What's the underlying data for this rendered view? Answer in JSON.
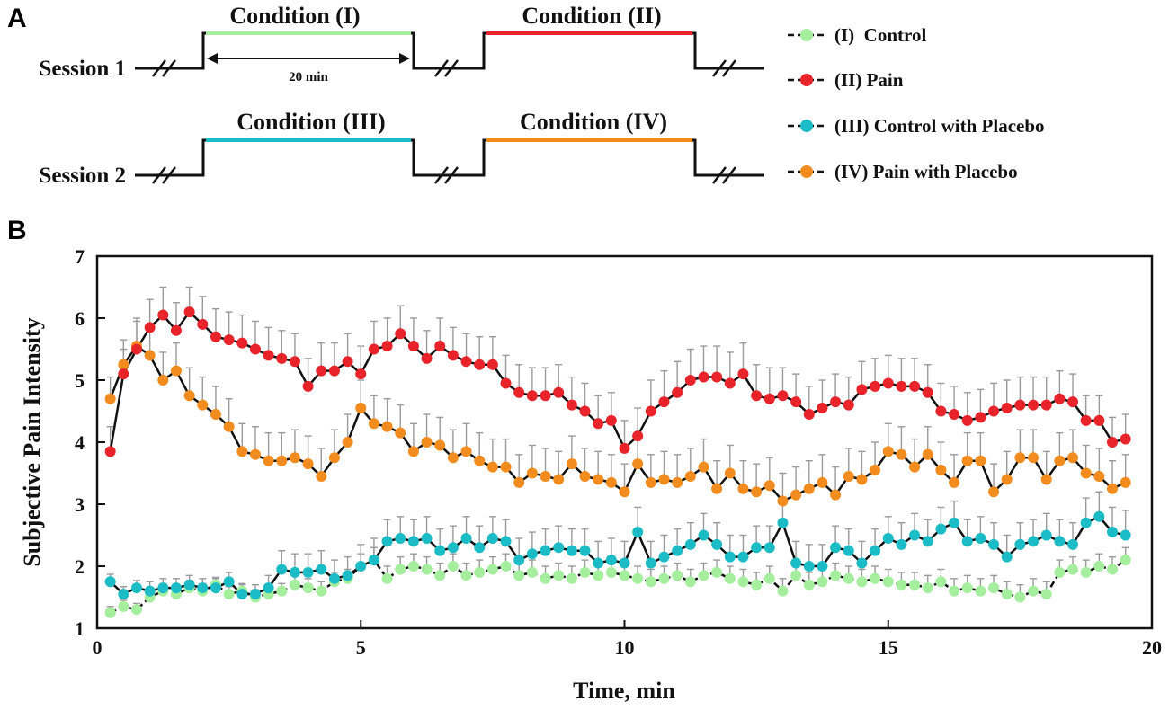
{
  "panels": {
    "a": "A",
    "b": "B"
  },
  "timeline": {
    "duration_label": "20 min",
    "sessions": [
      {
        "label": "Session 1",
        "conditions": [
          {
            "label": "Condition (I)",
            "color": "#a4ee9e"
          },
          {
            "label": "Condition (II)",
            "color": "#e8232a"
          }
        ]
      },
      {
        "label": "Session 2",
        "conditions": [
          {
            "label": "Condition (III)",
            "color": "#1bbcc5"
          },
          {
            "label": "Condition (IV)",
            "color": "#f28c1e"
          }
        ]
      }
    ]
  },
  "legend": [
    {
      "label": "(I)  Control",
      "color": "#a4ee9e"
    },
    {
      "label": "(II) Pain",
      "color": "#e8232a"
    },
    {
      "label": "(III) Control with Placebo",
      "color": "#1bbcc5"
    },
    {
      "label": "(IV) Pain with Placebo",
      "color": "#f28c1e"
    }
  ],
  "chart_data": {
    "type": "line",
    "title": "",
    "xlabel": "Time, min",
    "ylabel": "Subjective Pain Intensity",
    "xlim": [
      0,
      20
    ],
    "ylim": [
      1,
      7
    ],
    "xticks": [
      0,
      5,
      10,
      15,
      20
    ],
    "yticks": [
      1,
      2,
      3,
      4,
      5,
      6,
      7
    ],
    "x": [
      0.25,
      0.5,
      0.75,
      1.0,
      1.25,
      1.5,
      1.75,
      2.0,
      2.25,
      2.5,
      2.75,
      3.0,
      3.25,
      3.5,
      3.75,
      4.0,
      4.25,
      4.5,
      4.75,
      5.0,
      5.25,
      5.5,
      5.75,
      6.0,
      6.25,
      6.5,
      6.75,
      7.0,
      7.25,
      7.5,
      7.75,
      8.0,
      8.25,
      8.5,
      8.75,
      9.0,
      9.25,
      9.5,
      9.75,
      10.0,
      10.25,
      10.5,
      10.75,
      11.0,
      11.25,
      11.5,
      11.75,
      12.0,
      12.25,
      12.5,
      12.75,
      13.0,
      13.25,
      13.5,
      13.75,
      14.0,
      14.25,
      14.5,
      14.75,
      15.0,
      15.25,
      15.5,
      15.75,
      16.0,
      16.25,
      16.5,
      16.75,
      17.0,
      17.25,
      17.5,
      17.75,
      18.0,
      18.25,
      18.5,
      18.75,
      19.0,
      19.25,
      19.5
    ],
    "series": [
      {
        "name": "(I) Control",
        "color": "#a4ee9e",
        "values": [
          1.25,
          1.35,
          1.3,
          1.5,
          1.6,
          1.55,
          1.65,
          1.6,
          1.7,
          1.55,
          1.6,
          1.5,
          1.55,
          1.6,
          1.7,
          1.65,
          1.6,
          1.75,
          1.8,
          2.0,
          2.1,
          1.8,
          1.95,
          2.0,
          1.95,
          1.85,
          2.0,
          1.85,
          1.9,
          1.95,
          2.0,
          1.85,
          1.9,
          1.8,
          1.85,
          1.8,
          1.9,
          1.85,
          1.9,
          1.85,
          1.8,
          1.75,
          1.8,
          1.85,
          1.75,
          1.85,
          1.9,
          1.8,
          1.75,
          1.7,
          1.8,
          1.6,
          1.85,
          1.7,
          1.75,
          1.85,
          1.8,
          1.75,
          1.8,
          1.75,
          1.7,
          1.7,
          1.65,
          1.75,
          1.6,
          1.65,
          1.6,
          1.65,
          1.55,
          1.5,
          1.6,
          1.55,
          1.9,
          1.95,
          1.9,
          2.0,
          1.95,
          2.1
        ],
        "errors": [
          0.1,
          0.1,
          0.1,
          0.12,
          0.12,
          0.12,
          0.12,
          0.12,
          0.12,
          0.12,
          0.12,
          0.12,
          0.12,
          0.12,
          0.15,
          0.15,
          0.15,
          0.15,
          0.15,
          0.2,
          0.2,
          0.2,
          0.2,
          0.2,
          0.2,
          0.2,
          0.2,
          0.2,
          0.2,
          0.2,
          0.2,
          0.2,
          0.2,
          0.2,
          0.2,
          0.2,
          0.2,
          0.2,
          0.2,
          0.2,
          0.2,
          0.2,
          0.2,
          0.2,
          0.2,
          0.2,
          0.2,
          0.2,
          0.2,
          0.2,
          0.2,
          0.2,
          0.2,
          0.2,
          0.2,
          0.2,
          0.2,
          0.2,
          0.2,
          0.2,
          0.2,
          0.2,
          0.2,
          0.2,
          0.2,
          0.2,
          0.2,
          0.2,
          0.2,
          0.2,
          0.2,
          0.2,
          0.2,
          0.2,
          0.2,
          0.2,
          0.2,
          0.2
        ]
      },
      {
        "name": "(II) Pain",
        "color": "#e8232a",
        "values": [
          3.85,
          5.1,
          5.5,
          5.85,
          6.05,
          5.8,
          6.1,
          5.9,
          5.7,
          5.65,
          5.6,
          5.5,
          5.4,
          5.35,
          5.3,
          4.9,
          5.15,
          5.15,
          5.3,
          5.1,
          5.5,
          5.55,
          5.75,
          5.55,
          5.35,
          5.55,
          5.4,
          5.3,
          5.25,
          5.25,
          4.95,
          4.8,
          4.75,
          4.75,
          4.8,
          4.6,
          4.5,
          4.3,
          4.35,
          3.9,
          4.1,
          4.5,
          4.65,
          4.8,
          5.0,
          5.05,
          5.05,
          4.95,
          5.1,
          4.75,
          4.7,
          4.75,
          4.65,
          4.45,
          4.55,
          4.65,
          4.6,
          4.85,
          4.9,
          4.95,
          4.9,
          4.9,
          4.8,
          4.5,
          4.45,
          4.35,
          4.4,
          4.5,
          4.55,
          4.6,
          4.6,
          4.6,
          4.7,
          4.65,
          4.35,
          4.35,
          4.0,
          4.05
        ],
        "errors": [
          0.4,
          0.4,
          0.45,
          0.45,
          0.45,
          0.45,
          0.4,
          0.45,
          0.45,
          0.45,
          0.45,
          0.45,
          0.45,
          0.45,
          0.45,
          0.45,
          0.45,
          0.45,
          0.45,
          0.45,
          0.45,
          0.45,
          0.45,
          0.45,
          0.45,
          0.45,
          0.45,
          0.45,
          0.45,
          0.45,
          0.45,
          0.45,
          0.45,
          0.45,
          0.45,
          0.45,
          0.45,
          0.45,
          0.45,
          0.45,
          0.45,
          0.5,
          0.5,
          0.5,
          0.5,
          0.5,
          0.5,
          0.5,
          0.5,
          0.5,
          0.5,
          0.45,
          0.45,
          0.45,
          0.45,
          0.45,
          0.45,
          0.45,
          0.45,
          0.45,
          0.45,
          0.45,
          0.45,
          0.45,
          0.45,
          0.45,
          0.45,
          0.45,
          0.45,
          0.45,
          0.45,
          0.45,
          0.45,
          0.45,
          0.4,
          0.4,
          0.4,
          0.4
        ]
      },
      {
        "name": "(III) Control with Placebo",
        "color": "#1bbcc5",
        "values": [
          1.75,
          1.55,
          1.65,
          1.6,
          1.65,
          1.65,
          1.7,
          1.65,
          1.65,
          1.75,
          1.55,
          1.55,
          1.65,
          1.95,
          1.9,
          1.9,
          1.95,
          1.8,
          1.85,
          2.0,
          2.1,
          2.4,
          2.45,
          2.4,
          2.45,
          2.25,
          2.3,
          2.45,
          2.3,
          2.45,
          2.4,
          2.1,
          2.2,
          2.25,
          2.3,
          2.25,
          2.25,
          2.05,
          2.1,
          2.05,
          2.55,
          2.05,
          2.15,
          2.25,
          2.35,
          2.5,
          2.35,
          2.15,
          2.15,
          2.3,
          2.3,
          2.7,
          2.05,
          2.0,
          2.0,
          2.3,
          2.25,
          2.05,
          2.25,
          2.45,
          2.35,
          2.5,
          2.4,
          2.6,
          2.7,
          2.4,
          2.45,
          2.35,
          2.15,
          2.35,
          2.4,
          2.5,
          2.4,
          2.35,
          2.7,
          2.8,
          2.55,
          2.5
        ],
        "errors": [
          0.12,
          0.12,
          0.12,
          0.15,
          0.15,
          0.15,
          0.15,
          0.15,
          0.15,
          0.15,
          0.15,
          0.15,
          0.2,
          0.3,
          0.3,
          0.3,
          0.3,
          0.3,
          0.3,
          0.35,
          0.35,
          0.35,
          0.35,
          0.35,
          0.35,
          0.35,
          0.35,
          0.35,
          0.35,
          0.35,
          0.35,
          0.35,
          0.35,
          0.35,
          0.35,
          0.35,
          0.35,
          0.35,
          0.35,
          0.35,
          0.4,
          0.35,
          0.35,
          0.35,
          0.35,
          0.35,
          0.35,
          0.35,
          0.35,
          0.35,
          0.35,
          0.4,
          0.35,
          0.35,
          0.35,
          0.35,
          0.35,
          0.35,
          0.35,
          0.35,
          0.35,
          0.35,
          0.35,
          0.35,
          0.35,
          0.35,
          0.35,
          0.35,
          0.35,
          0.35,
          0.35,
          0.35,
          0.35,
          0.35,
          0.4,
          0.4,
          0.4,
          0.4
        ]
      },
      {
        "name": "(IV) Pain with Placebo",
        "color": "#f28c1e",
        "values": [
          4.7,
          5.25,
          5.55,
          5.4,
          5.0,
          5.15,
          4.75,
          4.6,
          4.45,
          4.25,
          3.85,
          3.8,
          3.7,
          3.7,
          3.75,
          3.65,
          3.45,
          3.75,
          4.0,
          4.55,
          4.3,
          4.25,
          4.15,
          3.85,
          4.0,
          3.95,
          3.75,
          3.85,
          3.7,
          3.6,
          3.6,
          3.35,
          3.5,
          3.45,
          3.4,
          3.65,
          3.45,
          3.4,
          3.35,
          3.2,
          3.65,
          3.35,
          3.4,
          3.35,
          3.45,
          3.6,
          3.25,
          3.5,
          3.25,
          3.2,
          3.3,
          3.05,
          3.15,
          3.25,
          3.35,
          3.15,
          3.45,
          3.4,
          3.55,
          3.85,
          3.8,
          3.6,
          3.8,
          3.55,
          3.35,
          3.7,
          3.7,
          3.2,
          3.4,
          3.75,
          3.75,
          3.4,
          3.7,
          3.75,
          3.5,
          3.45,
          3.25,
          3.35
        ],
        "errors": [
          0.35,
          0.4,
          0.45,
          0.45,
          0.45,
          0.45,
          0.45,
          0.45,
          0.45,
          0.45,
          0.45,
          0.45,
          0.45,
          0.45,
          0.45,
          0.45,
          0.45,
          0.45,
          0.45,
          0.45,
          0.45,
          0.45,
          0.45,
          0.45,
          0.45,
          0.45,
          0.45,
          0.45,
          0.45,
          0.45,
          0.45,
          0.45,
          0.45,
          0.45,
          0.45,
          0.45,
          0.45,
          0.45,
          0.45,
          0.45,
          0.45,
          0.45,
          0.45,
          0.45,
          0.45,
          0.45,
          0.45,
          0.45,
          0.45,
          0.45,
          0.45,
          0.45,
          0.45,
          0.45,
          0.45,
          0.45,
          0.45,
          0.45,
          0.45,
          0.45,
          0.45,
          0.45,
          0.45,
          0.45,
          0.45,
          0.45,
          0.45,
          0.45,
          0.45,
          0.45,
          0.45,
          0.45,
          0.45,
          0.45,
          0.45,
          0.45,
          0.45,
          0.45
        ]
      }
    ]
  }
}
